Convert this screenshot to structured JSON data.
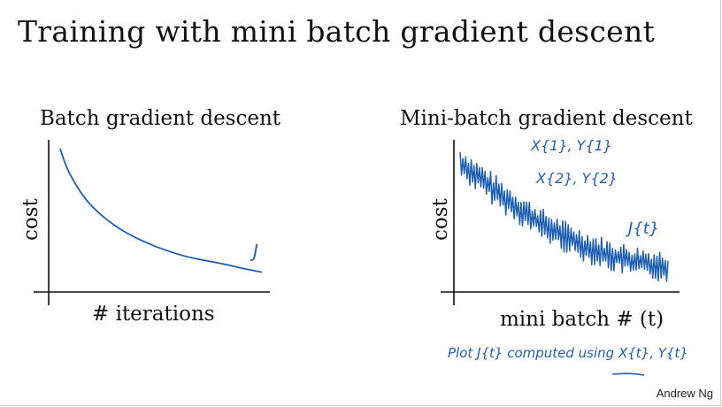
{
  "slide": {
    "title": "Training with mini batch gradient descent",
    "credit": "Andrew Ng"
  },
  "colors": {
    "ink": "#1f5fb0",
    "axis": "#111111"
  },
  "chart_data": [
    {
      "type": "line",
      "title": "Batch gradient descent",
      "xlabel": "# iterations",
      "ylabel": "cost",
      "annotation": "J",
      "grid": false,
      "series": [
        {
          "x": [
            0,
            0.03,
            0.07,
            0.12,
            0.18,
            0.25,
            0.33,
            0.42,
            0.52,
            0.62,
            0.72,
            0.82,
            0.9,
            1.0
          ],
          "values": [
            1.0,
            0.86,
            0.74,
            0.62,
            0.52,
            0.43,
            0.35,
            0.28,
            0.22,
            0.17,
            0.14,
            0.11,
            0.08,
            0.05
          ]
        }
      ]
    },
    {
      "type": "line",
      "title": "Mini-batch gradient descent",
      "xlabel": "mini batch # (t)",
      "ylabel": "cost",
      "annotations": [
        "X{1}, Y{1}",
        "X{2}, Y{2}",
        "J{t}"
      ],
      "note": "Plot J{t} computed using X{t}, Y{t}",
      "grid": false,
      "series": [
        {
          "trend_x": [
            0,
            0.1,
            0.2,
            0.3,
            0.4,
            0.5,
            0.6,
            0.7,
            0.8,
            0.9,
            1.0
          ],
          "trend_values": [
            0.9,
            0.78,
            0.66,
            0.55,
            0.45,
            0.37,
            0.3,
            0.24,
            0.2,
            0.17,
            0.15
          ],
          "noise_amplitude": 0.09
        }
      ]
    }
  ]
}
